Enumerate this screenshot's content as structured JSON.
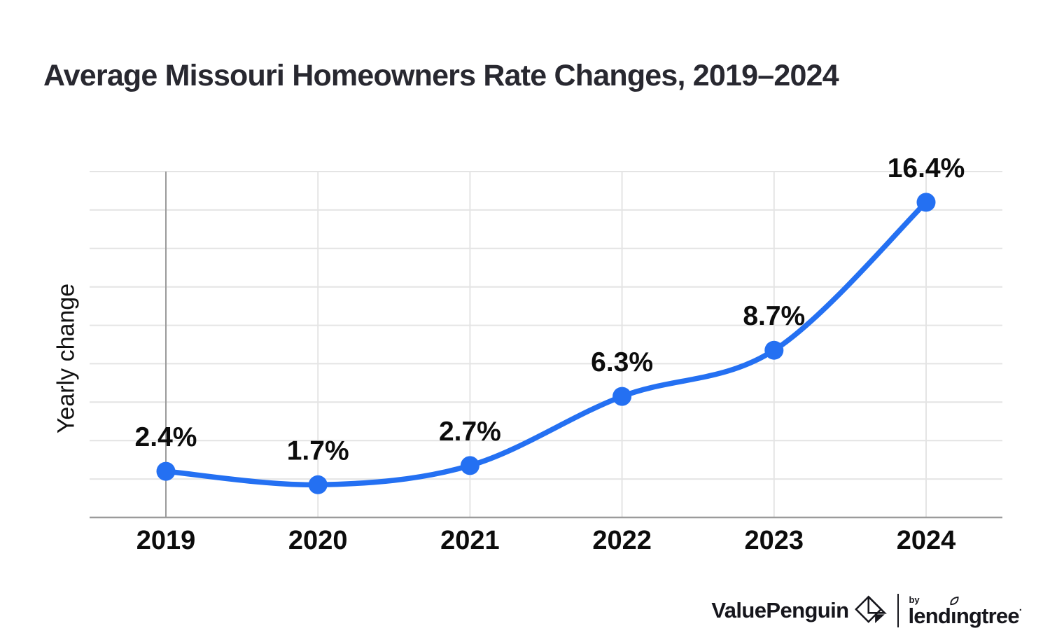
{
  "page": {
    "background": "#ffffff"
  },
  "chart_data": {
    "type": "line",
    "title": "Average Missouri Homeowners Rate Changes, 2019–2024",
    "ylabel": "Yearly change",
    "xlabel": "",
    "categories": [
      "2019",
      "2020",
      "2021",
      "2022",
      "2023",
      "2024"
    ],
    "series": [
      {
        "name": "Average Missouri homeowners rate change",
        "values": [
          2.4,
          1.7,
          2.7,
          6.3,
          8.7,
          16.4
        ]
      }
    ],
    "data_labels": [
      "2.4%",
      "1.7%",
      "2.7%",
      "6.3%",
      "8.7%",
      "16.4%"
    ],
    "ylim": [
      0,
      18
    ],
    "grid_step": 2,
    "grid": true,
    "legend": "none",
    "marker": "circle",
    "curve": "smooth"
  },
  "colors": {
    "line": "#2470F2",
    "marker": "#2470F2",
    "grid_light": "#e4e4e4",
    "axis_gray": "#9b9b9b",
    "label_text": "#0c0c0c",
    "title_text": "#282830",
    "brand_text": "#16161c"
  },
  "footer": {
    "valuepenguin": "ValuePenguin",
    "by": "by",
    "lendingtree_pre": "lend",
    "lendingtree_i": "ı",
    "lendingtree_post": "ngtree",
    "trademark_dot": "·",
    "icons": {
      "valuepenguin_icon": "origami-penguin-diamond",
      "leaf_icon": "leaf-over-i"
    }
  }
}
